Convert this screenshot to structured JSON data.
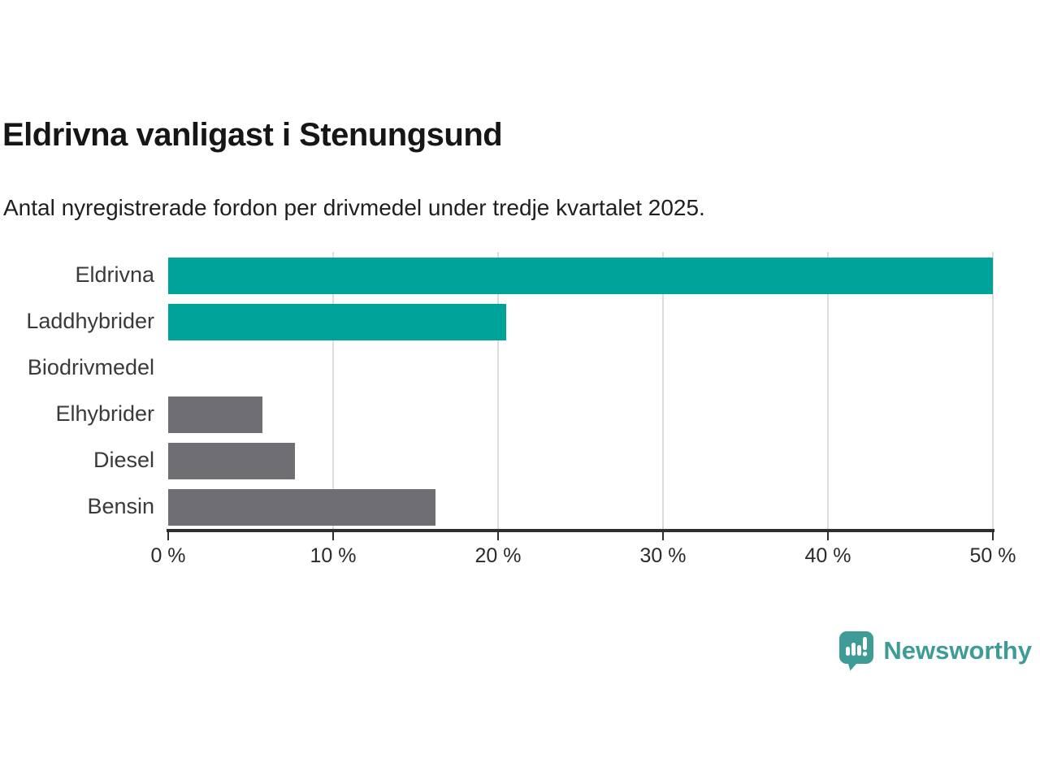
{
  "header": {
    "title": "Eldrivna vanligast i Stenungsund",
    "subtitle": "Antal nyregistrerade fordon per drivmedel under tredje kvartalet 2025."
  },
  "chart_data": {
    "type": "bar",
    "orientation": "horizontal",
    "title": "Eldrivna vanligast i Stenungsund",
    "subtitle": "Antal nyregistrerade fordon per drivmedel under tredje kvartalet 2025.",
    "categories": [
      "Eldrivna",
      "Laddhybrider",
      "Biodrivmedel",
      "Elhybrider",
      "Diesel",
      "Bensin"
    ],
    "values": [
      50.0,
      20.5,
      0.0,
      5.7,
      7.7,
      16.2
    ],
    "unit": "%",
    "xlim": [
      0,
      50
    ],
    "xticks": [
      0,
      10,
      20,
      30,
      40,
      50
    ],
    "xtick_labels": [
      "0 %",
      "10 %",
      "20 %",
      "30 %",
      "40 %",
      "50 %"
    ],
    "grid": "vertical-only",
    "legend": "none",
    "bar_colors": [
      "#00a39a",
      "#00a39a",
      "#6e6e73",
      "#6e6e73",
      "#6e6e73",
      "#6e6e73"
    ],
    "highlight_color": "#00a39a",
    "default_color": "#6e6e73",
    "gridline_color": "#dcdcdc",
    "axis_color": "#2e2e2e"
  },
  "footer": {
    "brand": "Newsworthy",
    "brand_color": "#3e9c96",
    "logo_icon": "newsworthy-speech-bubble-chart-icon"
  }
}
